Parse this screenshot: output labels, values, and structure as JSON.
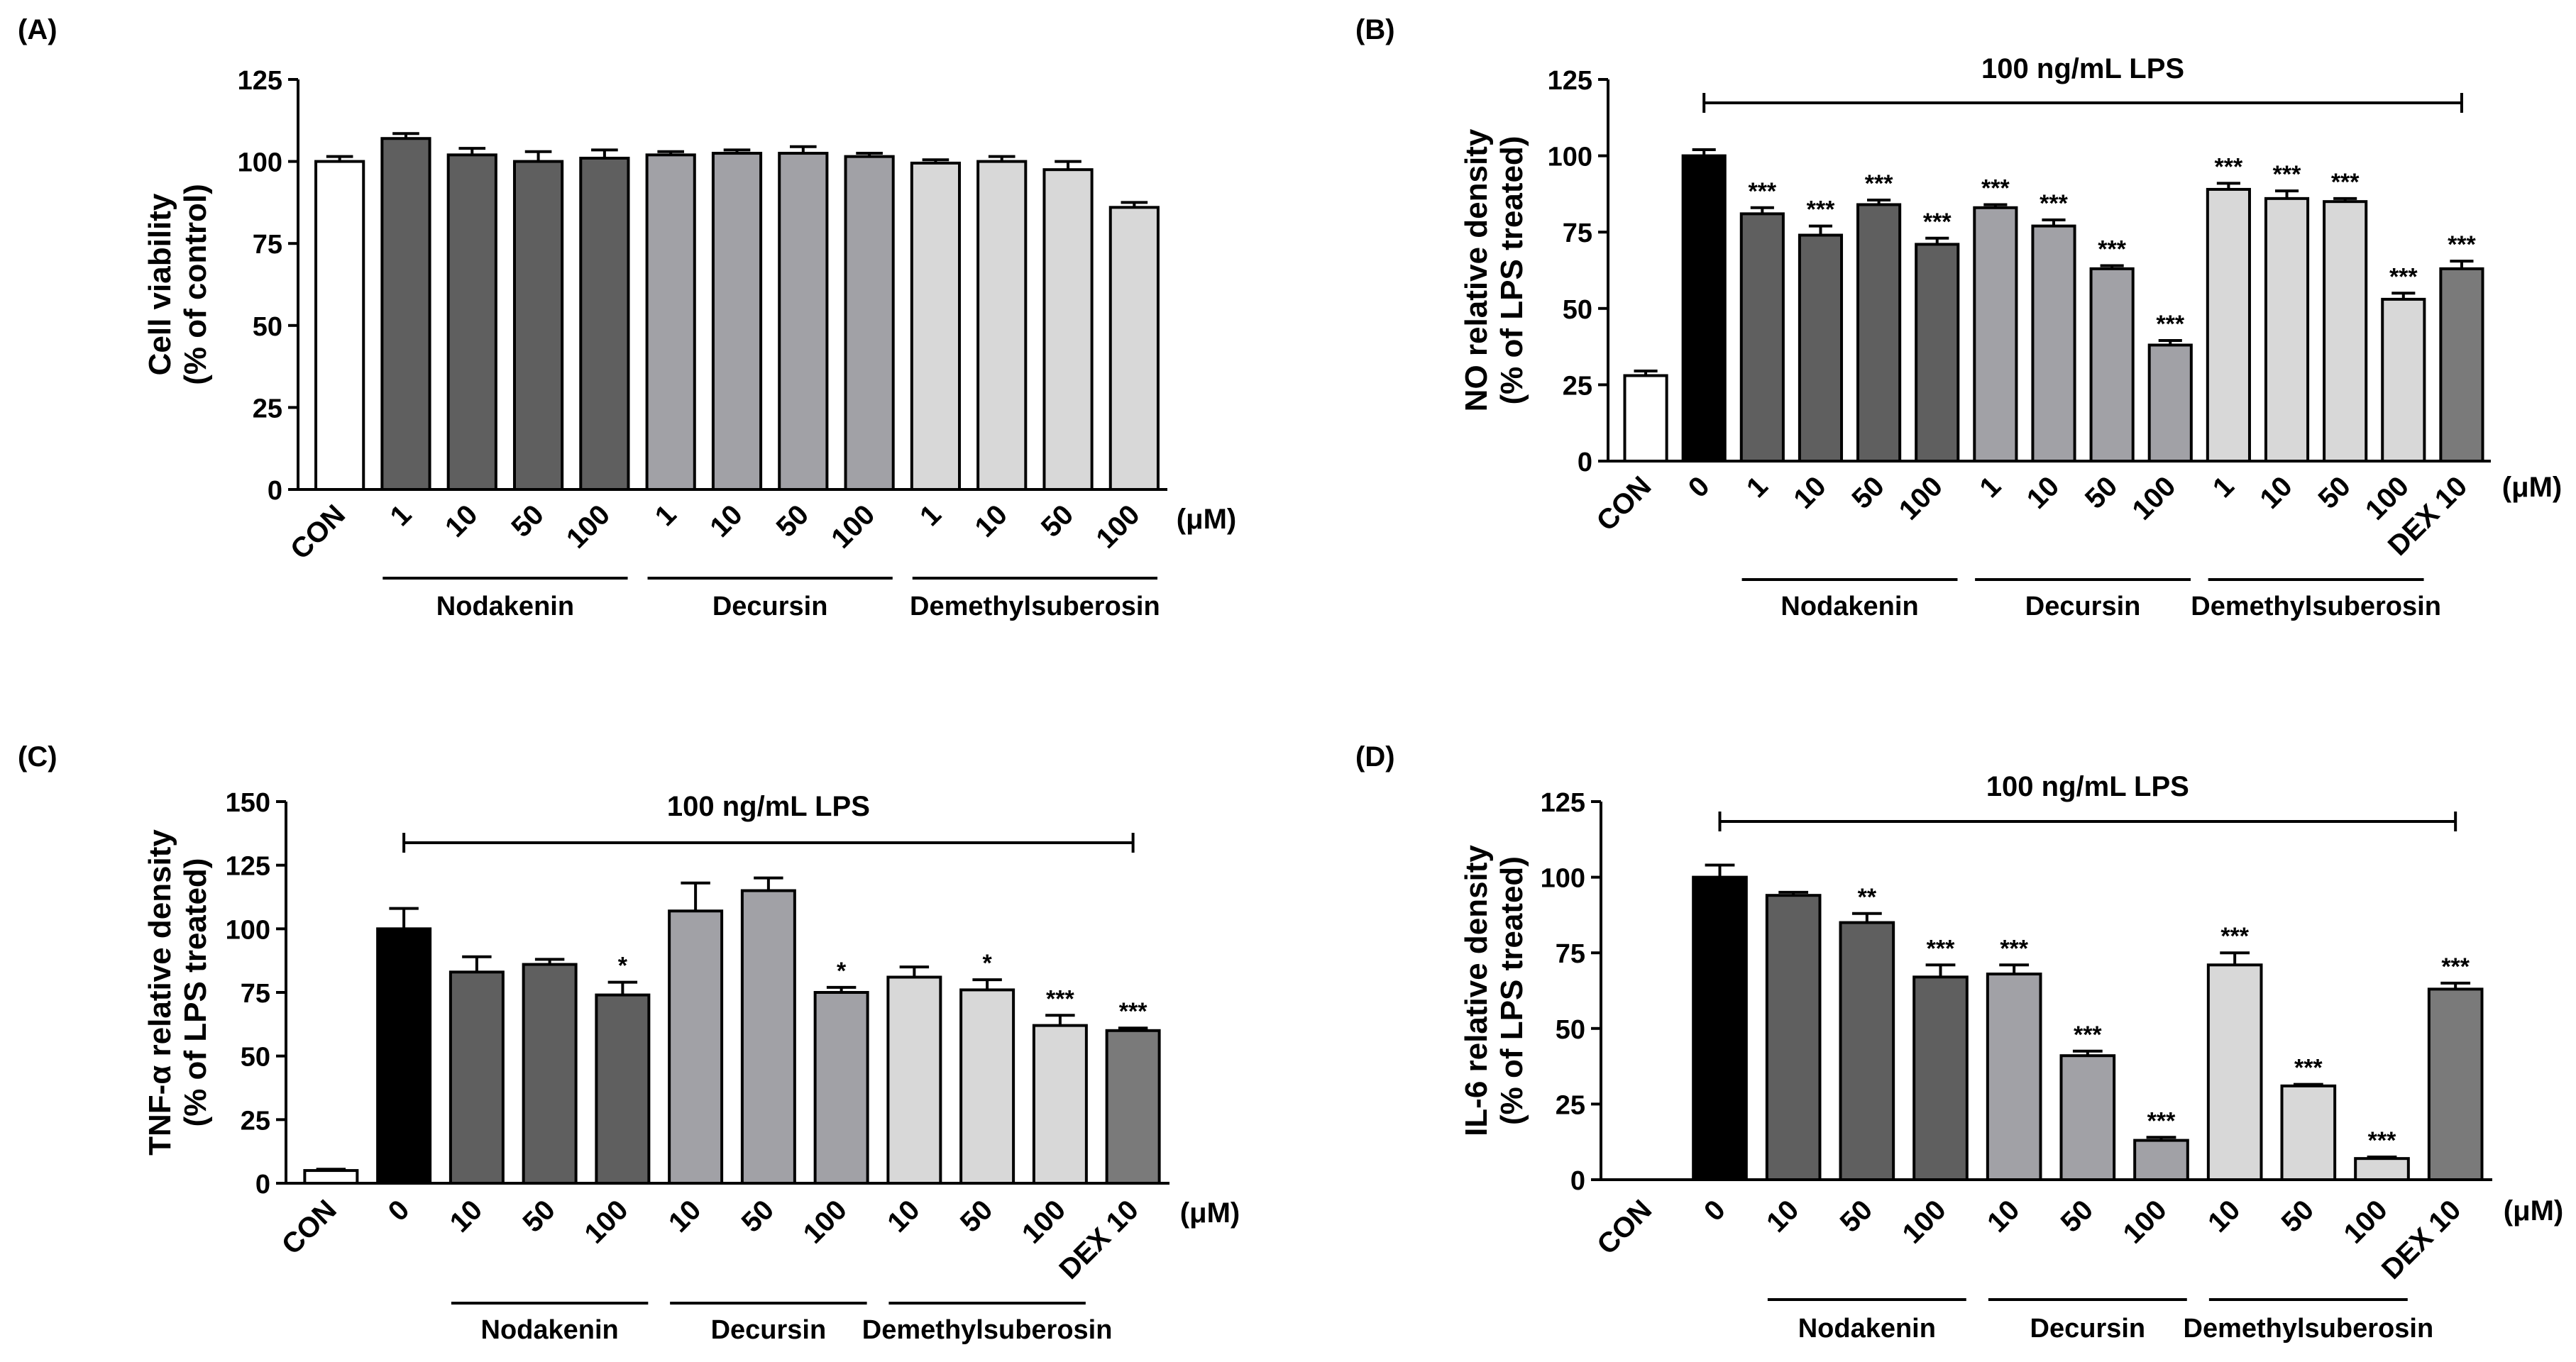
{
  "colors": {
    "control": "#ffffff",
    "lps": "#000000",
    "nodakenin": "#5f5f5f",
    "decursin": "#a1a1a6",
    "demethylsuberosin": "#d8d8d8",
    "dex": "#7a7a7a",
    "axis": "#000000"
  },
  "chart_data": [
    {
      "type": "bar",
      "panel": "(A)",
      "ylabel_line1": "Cell viability",
      "ylabel_line2": "(% of control)",
      "ylim": [
        0,
        125
      ],
      "yticks": [
        "0",
        "25",
        "50",
        "75",
        "100",
        "125"
      ],
      "unit_label": "(μM)",
      "lps_label": "",
      "categories": [
        "CON",
        "1",
        "10",
        "50",
        "100",
        "1",
        "10",
        "50",
        "100",
        "1",
        "10",
        "50",
        "100"
      ],
      "values": [
        100,
        107,
        102,
        100,
        101,
        102,
        102.5,
        102.5,
        101.5,
        99.5,
        100,
        97.5,
        86
      ],
      "errors": [
        1.5,
        1.5,
        2,
        3,
        2.5,
        1,
        1,
        2,
        1,
        1,
        1.5,
        2.5,
        1.5
      ],
      "groups": [
        "control",
        "nodakenin",
        "nodakenin",
        "nodakenin",
        "nodakenin",
        "decursin",
        "decursin",
        "decursin",
        "decursin",
        "demethylsuberosin",
        "demethylsuberosin",
        "demethylsuberosin",
        "demethylsuberosin"
      ],
      "stars": [
        "",
        "",
        "",
        "",
        "",
        "",
        "",
        "",
        "",
        "",
        "",
        "",
        ""
      ],
      "group_labels": [
        {
          "name": "Nodakenin",
          "from": 1,
          "to": 4
        },
        {
          "name": "Decursin",
          "from": 5,
          "to": 8
        },
        {
          "name": "Demethylsuberosin",
          "from": 9,
          "to": 12
        }
      ]
    },
    {
      "type": "bar",
      "panel": "(B)",
      "ylabel_line1": "NO relative density",
      "ylabel_line2": "(% of LPS treated)",
      "ylim": [
        0,
        125
      ],
      "yticks": [
        "0",
        "25",
        "50",
        "75",
        "100",
        "125"
      ],
      "unit_label": "(μM)",
      "lps_label": "100 ng/mL LPS",
      "lps_from": 1,
      "categories": [
        "CON",
        "0",
        "1",
        "10",
        "50",
        "100",
        "1",
        "10",
        "50",
        "100",
        "1",
        "10",
        "50",
        "100",
        "DEX 10"
      ],
      "values": [
        28,
        100,
        81,
        74,
        84,
        71,
        83,
        77,
        63,
        38,
        89,
        86,
        85,
        53,
        63
      ],
      "errors": [
        1.5,
        2,
        2,
        3,
        1.5,
        2,
        1,
        2,
        1,
        1.5,
        2,
        2.5,
        1,
        2,
        2.5
      ],
      "groups": [
        "control",
        "lps",
        "nodakenin",
        "nodakenin",
        "nodakenin",
        "nodakenin",
        "decursin",
        "decursin",
        "decursin",
        "decursin",
        "demethylsuberosin",
        "demethylsuberosin",
        "demethylsuberosin",
        "demethylsuberosin",
        "dex"
      ],
      "stars": [
        "",
        "",
        "***",
        "***",
        "***",
        "***",
        "***",
        "***",
        "***",
        "***",
        "***",
        "***",
        "***",
        "***",
        "***"
      ],
      "group_labels": [
        {
          "name": "Nodakenin",
          "from": 2,
          "to": 5
        },
        {
          "name": "Decursin",
          "from": 6,
          "to": 9
        },
        {
          "name": "Demethylsuberosin",
          "from": 10,
          "to": 13
        }
      ]
    },
    {
      "type": "bar",
      "panel": "(C)",
      "ylabel_line1": "TNF-α relative density",
      "ylabel_line2": "(% of LPS treated)",
      "ylim": [
        0,
        150
      ],
      "yticks": [
        "0",
        "25",
        "50",
        "75",
        "100",
        "125",
        "150"
      ],
      "unit_label": "(μM)",
      "lps_label": "100 ng/mL LPS",
      "lps_from": 1,
      "categories": [
        "CON",
        "0",
        "10",
        "50",
        "100",
        "10",
        "50",
        "100",
        "10",
        "50",
        "100",
        "DEX 10"
      ],
      "values": [
        5,
        100,
        83,
        86,
        74,
        107,
        115,
        75,
        81,
        76,
        62,
        60
      ],
      "errors": [
        0.5,
        8,
        6,
        2,
        5,
        11,
        5,
        2,
        4,
        4,
        4,
        1
      ],
      "groups": [
        "control",
        "lps",
        "nodakenin",
        "nodakenin",
        "nodakenin",
        "decursin",
        "decursin",
        "decursin",
        "demethylsuberosin",
        "demethylsuberosin",
        "demethylsuberosin",
        "dex"
      ],
      "stars": [
        "",
        "",
        "",
        "",
        "*",
        "",
        "",
        "*",
        "",
        "*",
        "***",
        "***"
      ],
      "group_labels": [
        {
          "name": "Nodakenin",
          "from": 2,
          "to": 4
        },
        {
          "name": "Decursin",
          "from": 5,
          "to": 7
        },
        {
          "name": "Demethylsuberosin",
          "from": 8,
          "to": 10
        }
      ]
    },
    {
      "type": "bar",
      "panel": "(D)",
      "ylabel_line1": "IL-6 relative density",
      "ylabel_line2": "(% of LPS treated)",
      "ylim": [
        0,
        125
      ],
      "yticks": [
        "0",
        "25",
        "50",
        "75",
        "100",
        "125"
      ],
      "unit_label": "(μM)",
      "lps_label": "100 ng/mL LPS",
      "lps_from": 1,
      "categories": [
        "CON",
        "0",
        "10",
        "50",
        "100",
        "10",
        "50",
        "100",
        "10",
        "50",
        "100",
        "DEX 10"
      ],
      "values": [
        0,
        100,
        94,
        85,
        67,
        68,
        41,
        13,
        71,
        31,
        7,
        63
      ],
      "errors": [
        0,
        4,
        1,
        3,
        4,
        3,
        1.5,
        1,
        4,
        0.5,
        0.5,
        2
      ],
      "groups": [
        "control",
        "lps",
        "nodakenin",
        "nodakenin",
        "nodakenin",
        "decursin",
        "decursin",
        "decursin",
        "demethylsuberosin",
        "demethylsuberosin",
        "demethylsuberosin",
        "dex"
      ],
      "stars": [
        "",
        "",
        "",
        "**",
        "***",
        "***",
        "***",
        "***",
        "***",
        "***",
        "***",
        "***"
      ],
      "group_labels": [
        {
          "name": "Nodakenin",
          "from": 2,
          "to": 4
        },
        {
          "name": "Decursin",
          "from": 5,
          "to": 7
        },
        {
          "name": "Demethylsuberosin",
          "from": 8,
          "to": 10
        }
      ]
    }
  ]
}
